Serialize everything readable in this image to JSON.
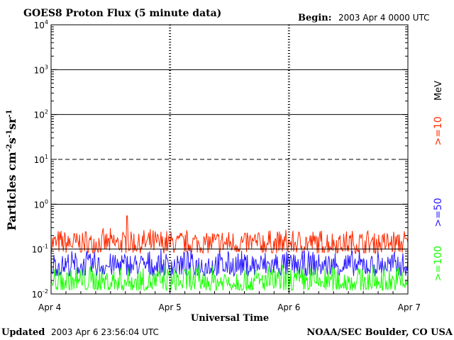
{
  "header": {
    "title": "GOES8 Proton Flux (5 minute data)",
    "begin_label": "Begin:",
    "begin_value": "2003 Apr 4 0000 UTC"
  },
  "footer": {
    "updated_label": "Updated",
    "updated_value": "2003 Apr  6 23:56:04 UTC",
    "credit": "NOAA/SEC Boulder, CO USA"
  },
  "colors": {
    "ge10": "#ff2a00",
    "ge50": "#2a1aff",
    "ge100": "#19ff00",
    "axis": "#000000"
  },
  "chart_data": {
    "type": "line",
    "xlabel": "Universal Time",
    "ylabel_parts": [
      "Particles cm",
      "-2",
      "s",
      "-1",
      "sr",
      "-1"
    ],
    "y_scale": "log",
    "ylim": [
      0.01,
      10000
    ],
    "y_ticks": [
      {
        "base": "10",
        "exp": "-2",
        "value": 0.01
      },
      {
        "base": "10",
        "exp": "-1",
        "value": 0.1
      },
      {
        "base": "10",
        "exp": "0",
        "value": 1
      },
      {
        "base": "10",
        "exp": "1",
        "value": 10
      },
      {
        "base": "10",
        "exp": "2",
        "value": 100
      },
      {
        "base": "10",
        "exp": "3",
        "value": 1000
      },
      {
        "base": "10",
        "exp": "4",
        "value": 10000
      }
    ],
    "x_ticks": [
      {
        "label": "Apr 4",
        "day": 0
      },
      {
        "label": "Apr 5",
        "day": 1
      },
      {
        "label": "Apr 6",
        "day": 2
      },
      {
        "label": "Apr 7",
        "day": 3
      }
    ],
    "xlim": [
      "2003-04-04 00:00",
      "2003-04-07 00:00"
    ],
    "threshold_lines": [
      {
        "value": 0.1,
        "style": "solid"
      },
      {
        "value": 1,
        "style": "solid"
      },
      {
        "value": 10,
        "style": "dashed"
      },
      {
        "value": 100,
        "style": "solid"
      },
      {
        "value": 1000,
        "style": "solid"
      }
    ],
    "unit_label": "MeV",
    "series": [
      {
        "name": ">=10",
        "color": "#ff2a00",
        "typical_range": [
          0.08,
          0.3
        ],
        "peak": {
          "day": 0.64,
          "value": 0.55
        }
      },
      {
        "name": ">=50",
        "color": "#2a1aff",
        "typical_range": [
          0.025,
          0.1
        ]
      },
      {
        "name": ">=100",
        "color": "#19ff00",
        "typical_range": [
          0.012,
          0.05
        ]
      }
    ]
  }
}
